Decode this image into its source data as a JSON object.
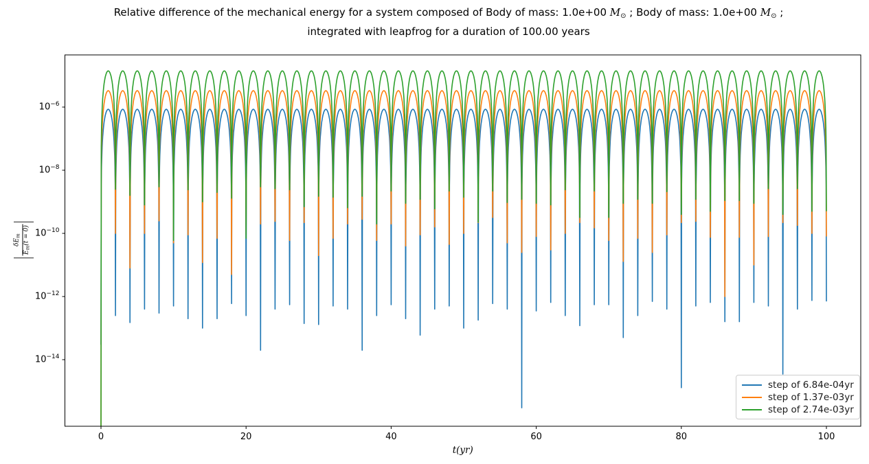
{
  "title": {
    "line1_pre": "Relative difference of the mechanical energy for a system composed of Body of mass: 1.0e+00 ",
    "mass_symbol_1": "M",
    "mass_sub_1": "⊙",
    "line1_mid": " ; Body of mass: 1.0e+00 ",
    "mass_symbol_2": "M",
    "mass_sub_2": "⊙",
    "line1_post": " ;",
    "line2": "integrated with leapfrog for a duration of 100.00 years"
  },
  "ylabel": {
    "open_bar": "|",
    "numerator_main": "δE",
    "numerator_sub": "m",
    "denominator_main": "E",
    "denominator_sub": "m",
    "denominator_tail": "(t = 0)",
    "close_bar": "|"
  },
  "chart_data": {
    "type": "line",
    "title": "Relative difference of the mechanical energy for a system composed of Body of mass: 1.0e+00 M⊙ ; Body of mass: 1.0e+00 M⊙ ; integrated with leapfrog for a duration of 100.00 years",
    "xlabel": "t(yr)",
    "ylabel": "|δEm/Em(t=0)|",
    "x_axis": {
      "ticks": [
        0,
        20,
        40,
        60,
        80,
        100
      ],
      "lim": [
        -5,
        105
      ]
    },
    "y_axis": {
      "scale": "log",
      "tick_exponents": [
        -6,
        -8,
        -10,
        -12,
        -14
      ],
      "lim_log10": [
        -16.1,
        -4.35
      ]
    },
    "grid": false,
    "legend_position": "lower right",
    "arch": {
      "period_yr": 2,
      "exponent": 2,
      "description": "Energy error oscillates each 2-yr orbit: smooth arches peaking at 'peak', plunging to per-cusp minima 'dips' at even years t=0,2,...,100"
    },
    "series": [
      {
        "name": "step of 6.84e-04yr",
        "color": "#1f77b4",
        "peak": 8.5e-07,
        "dips": [
          3e-14,
          2.5e-13,
          1.5e-13,
          4e-13,
          3e-13,
          5e-13,
          2e-13,
          1e-13,
          2e-13,
          6e-13,
          2.5e-13,
          2e-14,
          4e-13,
          5.5e-13,
          1.4e-13,
          1.3e-13,
          5e-13,
          4e-13,
          2e-14,
          2.5e-13,
          5.5e-13,
          2e-13,
          6e-14,
          4e-13,
          5e-13,
          1e-13,
          1.8e-13,
          6e-13,
          4e-13,
          3e-16,
          3.5e-13,
          6.5e-13,
          2.5e-13,
          1.2e-13,
          5.5e-13,
          5.5e-13,
          5e-14,
          2.5e-13,
          7e-13,
          4e-13,
          1.3e-15,
          5e-13,
          6.5e-13,
          1.6e-13,
          1.6e-13,
          6.5e-13,
          5e-13,
          3.5e-15,
          4e-13,
          7.5e-13,
          7e-13
        ]
      },
      {
        "name": "step of 1.37e-03yr",
        "color": "#ff7f0e",
        "peak": 3.3e-06,
        "dips": [
          1e-17,
          1e-10,
          8e-12,
          1e-10,
          2.5e-10,
          5e-11,
          9e-11,
          1.2e-11,
          7e-11,
          5e-12,
          9e-11,
          2e-10,
          2.4e-10,
          6e-11,
          2.2e-10,
          2e-11,
          7e-11,
          2e-10,
          2.8e-10,
          6e-11,
          2e-10,
          4e-11,
          9e-11,
          1.6e-10,
          4.5e-11,
          1e-10,
          2.2e-10,
          3.2e-10,
          5e-11,
          2.5e-11,
          8e-11,
          3e-11,
          1e-10,
          2.2e-10,
          1.5e-10,
          6e-11,
          1.3e-11,
          7e-11,
          2.5e-11,
          9e-11,
          2.2e-10,
          2.4e-10,
          7.5e-11,
          1e-12,
          7.5e-11,
          1e-11,
          8e-11,
          2.2e-10,
          1.8e-10,
          1e-10,
          8e-11
        ]
      },
      {
        "name": "step of 2.74e-03yr",
        "color": "#2ca02c",
        "peak": 1.4e-05,
        "dips": [
          1e-17,
          2.5e-09,
          1.6e-09,
          8e-10,
          3e-09,
          6e-11,
          2.4e-09,
          1e-09,
          2e-09,
          1.3e-09,
          7e-11,
          3e-09,
          2.6e-09,
          2.4e-09,
          7e-10,
          1.5e-09,
          1.4e-09,
          6.5e-10,
          1.5e-09,
          2e-10,
          2.2e-09,
          9e-10,
          1.2e-09,
          6e-10,
          2.2e-09,
          1.4e-09,
          2.3e-10,
          2.2e-09,
          9.5e-10,
          1.2e-09,
          9e-10,
          8e-10,
          2.4e-09,
          3.2e-10,
          2.2e-09,
          3.2e-10,
          9e-10,
          1.2e-09,
          9e-10,
          2.1e-09,
          4e-10,
          1.2e-09,
          5e-10,
          1.1e-09,
          1.1e-09,
          9e-10,
          2.6e-09,
          4e-10,
          2.6e-09,
          5e-10,
          5e-10
        ]
      }
    ]
  }
}
